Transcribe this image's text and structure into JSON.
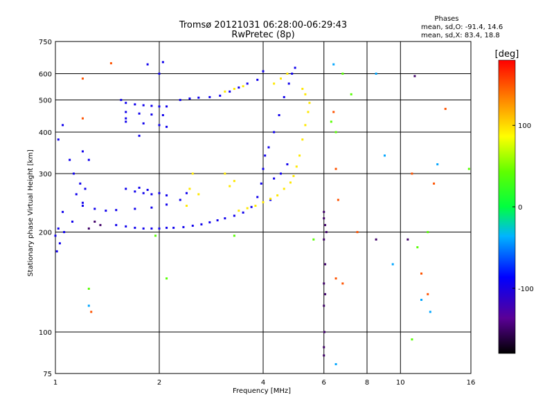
{
  "chart_data": {
    "type": "scatter",
    "title": "Tromsø 20121031 06:28:00-06:29:43",
    "subtitle": "RwPretec (8p)",
    "xlabel": "Frequency [MHz]",
    "ylabel": "Stationary phase Virtual Height [km]",
    "x_scale": "log",
    "y_scale": "log",
    "xlim": [
      1,
      16
    ],
    "ylim": [
      75,
      750
    ],
    "x_ticks": [
      {
        "label": "1",
        "value": 1
      },
      {
        "label": "2",
        "value": 2
      },
      {
        "label": "4",
        "value": 4
      },
      {
        "label": "6",
        "value": 6
      },
      {
        "label": "8",
        "value": 8
      },
      {
        "label": "10",
        "value": 10
      },
      {
        "label": "16",
        "value": 16
      }
    ],
    "y_ticks": [
      {
        "label": "75",
        "value": 75
      },
      {
        "label": "100",
        "value": 100
      },
      {
        "label": "200",
        "value": 200
      },
      {
        "label": "300",
        "value": 300
      },
      {
        "label": "400",
        "value": 400
      },
      {
        "label": "500",
        "value": 500
      },
      {
        "label": "600",
        "value": 600
      },
      {
        "label": "750",
        "value": 750
      }
    ],
    "grid": true,
    "stats": {
      "heading": "Phases",
      "line_o": "mean, sd,O: -91.4, 14.6",
      "line_x": "mean, sd,X: 83.4, 18.8"
    },
    "colorbar": {
      "label": "[deg]",
      "range": [
        -180,
        180
      ],
      "ticks": [
        {
          "label": "100",
          "value": 100
        },
        {
          "label": "0",
          "value": 0
        },
        {
          "label": "-100",
          "value": -100
        }
      ]
    },
    "series": [
      {
        "phase_deg": -95,
        "points": [
          [
            1.5,
            210
          ],
          [
            1.6,
            208
          ],
          [
            1.7,
            206
          ],
          [
            1.8,
            205
          ],
          [
            1.9,
            205
          ],
          [
            2.0,
            205
          ],
          [
            2.1,
            206
          ],
          [
            2.2,
            206
          ],
          [
            2.35,
            207
          ],
          [
            2.5,
            209
          ],
          [
            2.65,
            211
          ],
          [
            2.8,
            214
          ],
          [
            2.95,
            217
          ],
          [
            3.1,
            220
          ],
          [
            3.3,
            224
          ],
          [
            3.5,
            229
          ],
          [
            3.7,
            238
          ],
          [
            3.85,
            255
          ],
          [
            3.95,
            280
          ],
          [
            4.0,
            310
          ],
          [
            4.05,
            340
          ],
          [
            4.15,
            360
          ],
          [
            4.3,
            400
          ],
          [
            4.45,
            450
          ],
          [
            4.6,
            510
          ],
          [
            4.75,
            560
          ],
          [
            4.85,
            600
          ],
          [
            4.95,
            625
          ],
          [
            1.15,
            260
          ],
          [
            1.2,
            245
          ],
          [
            1.3,
            235
          ],
          [
            1.4,
            232
          ],
          [
            1.5,
            233
          ],
          [
            1.7,
            235
          ],
          [
            1.9,
            237
          ],
          [
            2.1,
            242
          ],
          [
            2.3,
            250
          ],
          [
            2.4,
            262
          ],
          [
            1.55,
            500
          ],
          [
            1.6,
            490
          ],
          [
            1.7,
            485
          ],
          [
            1.8,
            482
          ],
          [
            1.9,
            480
          ],
          [
            2.0,
            478
          ],
          [
            2.1,
            478
          ],
          [
            1.6,
            460
          ],
          [
            1.75,
            455
          ],
          [
            1.9,
            452
          ],
          [
            2.05,
            450
          ],
          [
            1.6,
            430
          ],
          [
            1.8,
            425
          ],
          [
            2.0,
            420
          ],
          [
            2.1,
            415
          ],
          [
            1.75,
            390
          ],
          [
            2.3,
            500
          ],
          [
            2.45,
            505
          ],
          [
            2.6,
            508
          ],
          [
            2.8,
            510
          ],
          [
            3.0,
            515
          ],
          [
            3.2,
            530
          ],
          [
            3.4,
            545
          ],
          [
            3.6,
            560
          ],
          [
            3.85,
            575
          ],
          [
            4.0,
            610
          ],
          [
            1.1,
            330
          ],
          [
            1.13,
            300
          ],
          [
            1.18,
            280
          ],
          [
            1.22,
            270
          ],
          [
            1.05,
            230
          ],
          [
            1.02,
            205
          ],
          [
            1.0,
            195
          ],
          [
            1.03,
            185
          ],
          [
            1.06,
            200
          ],
          [
            1.12,
            215
          ],
          [
            1.2,
            240
          ],
          [
            1.01,
            175
          ],
          [
            1.7,
            265
          ],
          [
            1.8,
            262
          ],
          [
            1.9,
            260
          ],
          [
            2.0,
            262
          ],
          [
            2.1,
            258
          ],
          [
            1.6,
            270
          ],
          [
            1.75,
            272
          ],
          [
            1.85,
            268
          ],
          [
            1.02,
            380
          ],
          [
            1.05,
            420
          ],
          [
            1.2,
            350
          ],
          [
            1.25,
            330
          ],
          [
            1.85,
            640
          ],
          [
            2.05,
            650
          ],
          [
            2.0,
            600
          ],
          [
            1.6,
            440
          ],
          [
            4.7,
            320
          ],
          [
            4.5,
            300
          ],
          [
            4.3,
            290
          ],
          [
            4.2,
            250
          ]
        ]
      },
      {
        "phase_deg": 95,
        "points": [
          [
            3.4,
            232
          ],
          [
            3.6,
            236
          ],
          [
            3.8,
            240
          ],
          [
            4.0,
            246
          ],
          [
            4.2,
            252
          ],
          [
            4.4,
            258
          ],
          [
            4.6,
            270
          ],
          [
            4.8,
            282
          ],
          [
            4.9,
            295
          ],
          [
            5.0,
            315
          ],
          [
            5.1,
            340
          ],
          [
            5.2,
            380
          ],
          [
            5.3,
            420
          ],
          [
            5.4,
            460
          ],
          [
            5.45,
            490
          ],
          [
            3.2,
            275
          ],
          [
            3.3,
            285
          ],
          [
            3.1,
            300
          ],
          [
            2.5,
            300
          ],
          [
            2.45,
            270
          ],
          [
            2.6,
            260
          ],
          [
            2.4,
            240
          ],
          [
            4.3,
            560
          ],
          [
            4.5,
            580
          ],
          [
            4.7,
            600
          ],
          [
            5.2,
            540
          ],
          [
            5.3,
            520
          ],
          [
            3.3,
            540
          ],
          [
            3.5,
            550
          ],
          [
            3.1,
            530
          ]
        ]
      },
      {
        "phase_deg": -150,
        "points": [
          [
            6.0,
            230
          ],
          [
            6.0,
            220
          ],
          [
            6.05,
            210
          ],
          [
            6.1,
            200
          ],
          [
            6.0,
            190
          ],
          [
            6.05,
            160
          ],
          [
            6.0,
            140
          ],
          [
            6.0,
            120
          ],
          [
            6.02,
            100
          ],
          [
            6.0,
            90
          ],
          [
            6.0,
            85
          ],
          [
            6.05,
            130
          ],
          [
            1.3,
            215
          ],
          [
            1.35,
            210
          ],
          [
            1.25,
            205
          ],
          [
            8.5,
            190
          ],
          [
            10.5,
            190
          ],
          [
            11,
            590
          ]
        ]
      },
      {
        "phase_deg": 150,
        "points": [
          [
            1.2,
            580
          ],
          [
            1.45,
            645
          ],
          [
            1.2,
            440
          ],
          [
            6.5,
            310
          ],
          [
            6.6,
            250
          ],
          [
            7.5,
            200
          ],
          [
            10.8,
            300
          ],
          [
            12.5,
            280
          ],
          [
            13.5,
            470
          ],
          [
            6.8,
            140
          ],
          [
            6.5,
            145
          ],
          [
            1.27,
            115
          ],
          [
            6.4,
            460
          ],
          [
            11.5,
            150
          ],
          [
            12.0,
            130
          ]
        ]
      },
      {
        "phase_deg": -40,
        "points": [
          [
            6.4,
            640
          ],
          [
            6.5,
            80
          ],
          [
            1.25,
            120
          ],
          [
            8.5,
            600
          ],
          [
            11.5,
            125
          ],
          [
            12.2,
            115
          ],
          [
            9.0,
            340
          ],
          [
            12.8,
            320
          ],
          [
            9.5,
            160
          ]
        ]
      },
      {
        "phase_deg": 40,
        "points": [
          [
            1.25,
            135
          ],
          [
            6.3,
            430
          ],
          [
            6.5,
            400
          ],
          [
            6.8,
            600
          ],
          [
            7.2,
            520
          ],
          [
            12.0,
            200
          ],
          [
            11.2,
            180
          ],
          [
            1.95,
            195
          ],
          [
            2.1,
            145
          ],
          [
            3.3,
            195
          ],
          [
            5.6,
            190
          ],
          [
            10.8,
            95
          ],
          [
            15.8,
            310
          ]
        ]
      }
    ]
  }
}
